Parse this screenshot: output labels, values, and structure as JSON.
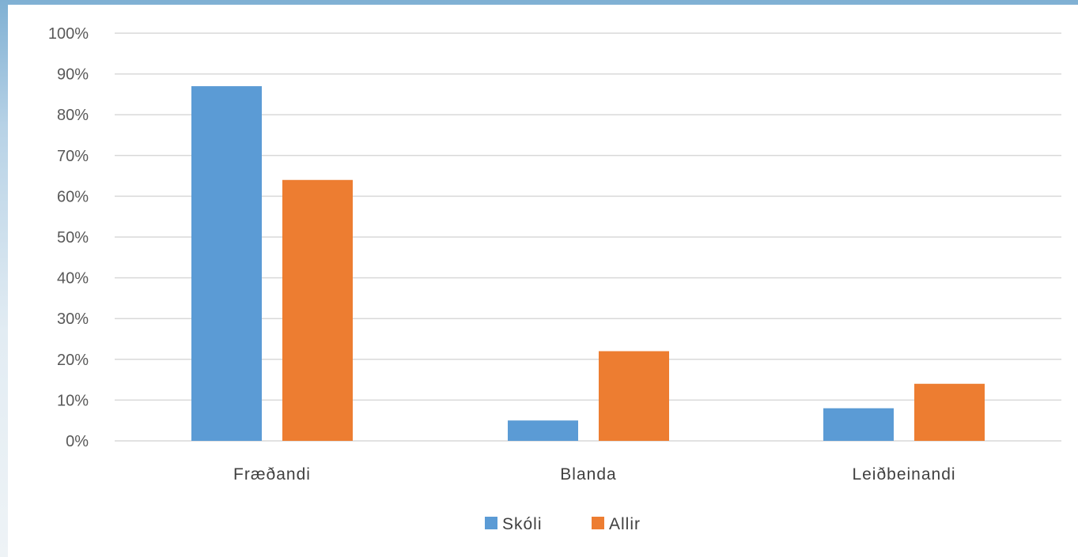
{
  "chart_data": {
    "type": "bar",
    "categories": [
      "Fræðandi",
      "Blanda",
      "Leiðbeinandi"
    ],
    "series": [
      {
        "name": "Skóli",
        "values": [
          87,
          5,
          8
        ],
        "color": "#5b9bd5"
      },
      {
        "name": "Allir",
        "values": [
          64,
          22,
          14
        ],
        "color": "#ed7d31"
      }
    ],
    "ylim": [
      0,
      100
    ],
    "yticks": [
      0,
      10,
      20,
      30,
      40,
      50,
      60,
      70,
      80,
      90,
      100
    ],
    "ytick_labels": [
      "0%",
      "10%",
      "20%",
      "30%",
      "40%",
      "50%",
      "60%",
      "70%",
      "80%",
      "90%",
      "100%"
    ],
    "grid": true,
    "legend_position": "bottom"
  }
}
